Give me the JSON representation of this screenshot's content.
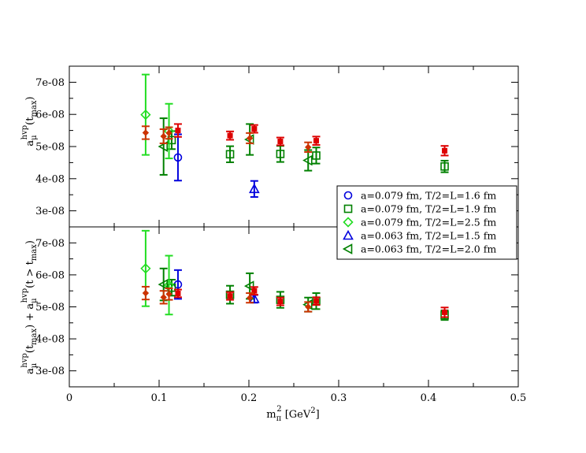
{
  "chart_data": [
    {
      "panel": "top",
      "type": "scatter",
      "ylabel": "a_μ^hvp(t_max)",
      "ylim": [
        2.5e-08,
        7.5e-08
      ],
      "yticks": [
        "3e-08",
        "4e-08",
        "5e-08",
        "6e-08",
        "7e-08"
      ],
      "series": [
        {
          "name": "a=0.079 fm, T/2=L=1.6 fm",
          "color": "#0000dd",
          "marker": "circle",
          "points": [
            {
              "x": 0.121,
              "y": 4.66e-08,
              "err": 7.2e-09
            }
          ]
        },
        {
          "name": "a=0.079 fm, T/2=L=1.9 fm",
          "color": "#008000",
          "marker": "square",
          "points": [
            {
              "x": 0.114,
              "y": 5.2e-08,
              "err": 2.8e-09
            },
            {
              "x": 0.179,
              "y": 4.76e-08,
              "err": 2.5e-09
            },
            {
              "x": 0.235,
              "y": 4.77e-08,
              "err": 2.5e-09
            },
            {
              "x": 0.275,
              "y": 4.72e-08,
              "err": 2.5e-09
            },
            {
              "x": 0.418,
              "y": 4.38e-08,
              "err": 1.8e-09
            }
          ]
        },
        {
          "name": "a=0.079 fm, T/2=L=2.5 fm",
          "color": "#22dd22",
          "marker": "diamond",
          "points": [
            {
              "x": 0.085,
              "y": 5.99e-08,
              "err": 1.25e-08
            },
            {
              "x": 0.111,
              "y": 5.48e-08,
              "err": 8.5e-09
            }
          ]
        },
        {
          "name": "a=0.063 fm, T/2=L=1.5 fm",
          "color": "#0000dd",
          "marker": "triangle-up",
          "points": [
            {
              "x": 0.206,
              "y": 3.68e-08,
              "err": 2.5e-09
            }
          ]
        },
        {
          "name": "a=0.063 fm, T/2=L=2.0 fm",
          "color": "#008000",
          "marker": "triangle-left",
          "points": [
            {
              "x": 0.105,
              "y": 5e-08,
              "err": 8.8e-09
            },
            {
              "x": 0.201,
              "y": 5.22e-08,
              "err": 4.8e-09
            },
            {
              "x": 0.266,
              "y": 4.57e-08,
              "err": 3.2e-09
            }
          ]
        },
        {
          "name": "",
          "color": "#dd0000",
          "marker": "filled-square",
          "points": [
            {
              "x": 0.121,
              "y": 5.5e-08,
              "err": 2e-09
            },
            {
              "x": 0.179,
              "y": 5.34e-08,
              "err": 1.3e-09
            },
            {
              "x": 0.206,
              "y": 5.55e-08,
              "err": 1.2e-09
            },
            {
              "x": 0.235,
              "y": 5.16e-08,
              "err": 1.2e-09
            },
            {
              "x": 0.275,
              "y": 5.18e-08,
              "err": 1.3e-09
            },
            {
              "x": 0.418,
              "y": 4.87e-08,
              "err": 1.5e-09
            }
          ]
        },
        {
          "name": "",
          "color": "#cc3300",
          "marker": "filled-diamond",
          "points": [
            {
              "x": 0.085,
              "y": 5.43e-08,
              "err": 2e-09
            },
            {
              "x": 0.105,
              "y": 5.32e-08,
              "err": 2.2e-09
            },
            {
              "x": 0.111,
              "y": 5.42e-08,
              "err": 1.8e-09
            },
            {
              "x": 0.201,
              "y": 5.26e-08,
              "err": 1.6e-09
            },
            {
              "x": 0.266,
              "y": 4.98e-08,
              "err": 1.5e-09
            }
          ]
        }
      ]
    },
    {
      "panel": "bottom",
      "type": "scatter",
      "xlabel": "m_π^2 [GeV^2]",
      "ylabel": "a_μ^hvp(t_max) + a_μ^hvp(t > t_max)",
      "xlim": [
        0,
        0.5
      ],
      "ylim": [
        2.5e-08,
        7.5e-08
      ],
      "xticks": [
        "0",
        "0.1",
        "0.2",
        "0.3",
        "0.4",
        "0.5"
      ],
      "yticks": [
        "3e-08",
        "4e-08",
        "5e-08",
        "6e-08",
        "7e-08"
      ],
      "series": [
        {
          "name": "a=0.079 fm, T/2=L=1.6 fm",
          "color": "#0000dd",
          "marker": "circle",
          "points": [
            {
              "x": 0.121,
              "y": 5.7e-08,
              "err": 4.5e-09
            }
          ]
        },
        {
          "name": "a=0.079 fm, T/2=L=1.9 fm",
          "color": "#008000",
          "marker": "square",
          "points": [
            {
              "x": 0.114,
              "y": 5.6e-08,
              "err": 2.5e-09
            },
            {
              "x": 0.179,
              "y": 5.38e-08,
              "err": 2.8e-09
            },
            {
              "x": 0.235,
              "y": 5.22e-08,
              "err": 2.5e-09
            },
            {
              "x": 0.275,
              "y": 5.18e-08,
              "err": 2.5e-09
            },
            {
              "x": 0.418,
              "y": 4.74e-08,
              "err": 1.5e-09
            }
          ]
        },
        {
          "name": "a=0.079 fm, T/2=L=2.5 fm",
          "color": "#22dd22",
          "marker": "diamond",
          "points": [
            {
              "x": 0.085,
              "y": 6.2e-08,
              "err": 1.18e-08
            },
            {
              "x": 0.111,
              "y": 5.68e-08,
              "err": 9.2e-09
            }
          ]
        },
        {
          "name": "a=0.063 fm, T/2=L=1.5 fm",
          "color": "#0000dd",
          "marker": "triangle-up",
          "points": [
            {
              "x": 0.206,
              "y": 5.25e-08,
              "err": 1.2e-09
            }
          ]
        },
        {
          "name": "a=0.063 fm, T/2=L=2.0 fm",
          "color": "#008000",
          "marker": "triangle-left",
          "points": [
            {
              "x": 0.105,
              "y": 5.7e-08,
              "err": 5e-09
            },
            {
              "x": 0.201,
              "y": 5.65e-08,
              "err": 4e-09
            },
            {
              "x": 0.266,
              "y": 5.07e-08,
              "err": 2.2e-09
            }
          ]
        },
        {
          "name": "",
          "color": "#dd0000",
          "marker": "filled-square",
          "points": [
            {
              "x": 0.121,
              "y": 5.42e-08,
              "err": 1.2e-09
            },
            {
              "x": 0.179,
              "y": 5.34e-08,
              "err": 1.2e-09
            },
            {
              "x": 0.206,
              "y": 5.5e-08,
              "err": 1.2e-09
            },
            {
              "x": 0.235,
              "y": 5.17e-08,
              "err": 1.2e-09
            },
            {
              "x": 0.275,
              "y": 5.18e-08,
              "err": 1.2e-09
            },
            {
              "x": 0.418,
              "y": 4.83e-08,
              "err": 1.5e-09
            }
          ]
        },
        {
          "name": "",
          "color": "#cc3300",
          "marker": "filled-diamond",
          "points": [
            {
              "x": 0.085,
              "y": 5.43e-08,
              "err": 2e-09
            },
            {
              "x": 0.105,
              "y": 5.3e-08,
              "err": 2e-09
            },
            {
              "x": 0.111,
              "y": 5.4e-08,
              "err": 1.8e-09
            },
            {
              "x": 0.201,
              "y": 5.28e-08,
              "err": 1.5e-09
            },
            {
              "x": 0.266,
              "y": 5e-08,
              "err": 1.5e-09
            }
          ]
        }
      ]
    }
  ],
  "legend": {
    "placement": "bottom-right of top panel",
    "entries": [
      {
        "label": "a=0.079 fm, T/2=L=1.6 fm",
        "color": "#0000dd",
        "marker": "circle"
      },
      {
        "label": "a=0.079 fm, T/2=L=1.9 fm",
        "color": "#008000",
        "marker": "square"
      },
      {
        "label": "a=0.079 fm, T/2=L=2.5 fm",
        "color": "#22dd22",
        "marker": "diamond"
      },
      {
        "label": "a=0.063 fm, T/2=L=1.5 fm",
        "color": "#0000dd",
        "marker": "triangle-up"
      },
      {
        "label": "a=0.063 fm, T/2=L=2.0 fm",
        "color": "#008000",
        "marker": "triangle-left"
      }
    ]
  }
}
